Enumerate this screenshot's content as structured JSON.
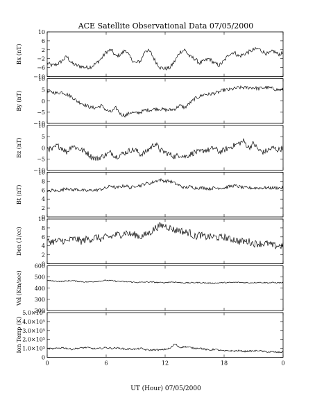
{
  "chart_data": {
    "type": "line",
    "title": "ACE Satellite Observational Data   07/05/2000",
    "xlabel": "UT (Hour)   07/05/2000",
    "xlim": [
      0,
      24
    ],
    "x_ticks": [
      "0",
      "6",
      "12",
      "18",
      "0"
    ],
    "x_tick_values": [
      0,
      6,
      12,
      18,
      24
    ],
    "sample_hours": [
      0,
      0.5,
      1,
      1.5,
      2,
      2.5,
      3,
      3.5,
      4,
      4.5,
      5,
      5.5,
      6,
      6.5,
      7,
      7.5,
      8,
      8.5,
      9,
      9.5,
      10,
      10.5,
      11,
      11.5,
      12,
      12.5,
      13,
      13.5,
      14,
      14.5,
      15,
      15.5,
      16,
      16.5,
      17,
      17.5,
      18,
      18.5,
      19,
      19.5,
      20,
      20.5,
      21,
      21.5,
      22,
      22.5,
      23,
      23.5,
      24
    ],
    "panels": [
      {
        "name": "bx",
        "ylabel": "Bx (nT)",
        "ylim": [
          -10,
          10
        ],
        "yticks": [
          -10,
          -6,
          -2,
          2,
          6,
          10
        ],
        "ytick_labels": [
          "−10",
          "−6",
          "−2",
          "2",
          "6",
          "10"
        ],
        "values": [
          -4,
          -5,
          -4.5,
          -3,
          -1,
          -4,
          -5,
          -5.5,
          -6,
          -5.5,
          -4,
          -2,
          1,
          2,
          -1,
          0,
          2,
          -2,
          -4,
          -3,
          2,
          1,
          -3,
          -6,
          -6.5,
          -6,
          -3,
          1,
          2,
          -1,
          -2,
          -4,
          -3,
          -2,
          -4,
          -5,
          -3,
          0,
          1,
          -1,
          0,
          1,
          2,
          2.5,
          1,
          0,
          1.5,
          0,
          0.5
        ]
      },
      {
        "name": "by",
        "ylabel": "By (nT)",
        "ylim": [
          -10,
          10
        ],
        "yticks": [
          -10,
          -5,
          0,
          5,
          10
        ],
        "ytick_labels": [
          "−10",
          "−5",
          "0",
          "5",
          "10"
        ],
        "values": [
          4,
          4,
          3.5,
          4,
          3,
          2,
          0,
          -1,
          -2,
          -3,
          -3,
          -2,
          -4,
          -5,
          -3,
          -6,
          -6.5,
          -5,
          -5.5,
          -5,
          -4,
          -4,
          -3.5,
          -3.5,
          -4,
          -4,
          -3.5,
          -2,
          -3,
          -1,
          1,
          2,
          3,
          3,
          3.5,
          4,
          5,
          5,
          5.5,
          6,
          6,
          6,
          6,
          5.5,
          6,
          6,
          5.5,
          5,
          5
        ]
      },
      {
        "name": "bz",
        "ylabel": "Bz (nT)",
        "ylim": [
          -10,
          10
        ],
        "yticks": [
          -10,
          -5,
          0,
          5,
          10
        ],
        "ytick_labels": [
          "−10",
          "−5",
          "0",
          "5",
          "10"
        ],
        "values": [
          0,
          -1,
          1,
          0,
          -2,
          1,
          0,
          -1,
          -2,
          -4,
          -5,
          -4,
          -3,
          -2,
          -4,
          -3,
          -2,
          -1,
          -1,
          -3,
          -2,
          0,
          2,
          -1,
          -2,
          -3,
          -4,
          -3,
          -4,
          -3,
          -2,
          -2,
          -1,
          -1,
          0,
          -2,
          -1,
          0,
          1,
          2,
          3,
          0,
          2,
          -1,
          -2,
          -1,
          0,
          -1,
          0
        ]
      },
      {
        "name": "bt",
        "ylabel": "Bt (nT)",
        "ylim": [
          0,
          10
        ],
        "yticks": [
          0,
          2,
          4,
          6,
          8,
          10
        ],
        "ytick_labels": [
          "0",
          "2",
          "4",
          "6",
          "8",
          "10"
        ],
        "values": [
          5.5,
          6,
          5.8,
          6,
          6.5,
          6,
          6.2,
          6,
          5.8,
          6,
          6,
          6.2,
          6.5,
          7,
          6.5,
          6.8,
          7,
          6.5,
          7,
          7,
          7.5,
          7.5,
          8,
          8.3,
          8,
          8,
          7.5,
          7,
          6.5,
          6.8,
          6.5,
          6.5,
          6.5,
          6.3,
          6.5,
          6.5,
          6.5,
          6.8,
          7,
          6.8,
          6.5,
          6.5,
          6.5,
          6.5,
          6.5,
          6.5,
          6.5,
          6.5,
          6.5
        ]
      },
      {
        "name": "den",
        "ylabel": "Den (1/cc)",
        "ylim": [
          0,
          10
        ],
        "yticks": [
          0,
          2,
          4,
          6,
          8,
          10
        ],
        "ytick_labels": [
          "0",
          "2",
          "4",
          "6",
          "8",
          "10"
        ],
        "values": [
          5,
          5,
          5,
          5.2,
          5,
          5.5,
          5.5,
          5,
          5.5,
          5.5,
          6,
          5.5,
          6,
          6,
          6.5,
          6.5,
          7,
          6.5,
          6.5,
          6,
          6.5,
          7,
          8,
          8.5,
          8.5,
          8,
          7.5,
          7.5,
          7,
          7,
          6,
          6.5,
          6,
          6,
          6,
          5.8,
          6,
          5.5,
          5.5,
          5,
          5,
          5,
          4.5,
          4.5,
          4.5,
          4.5,
          4,
          4,
          4
        ]
      },
      {
        "name": "vel",
        "ylabel": "Vel (Km/sec)",
        "ylim": [
          200,
          600
        ],
        "yticks": [
          200,
          300,
          400,
          500,
          600
        ],
        "ytick_labels": [
          "200",
          "300",
          "400",
          "500",
          "600"
        ],
        "values": [
          470,
          465,
          462,
          460,
          465,
          468,
          462,
          458,
          455,
          457,
          460,
          465,
          470,
          468,
          462,
          460,
          457,
          455,
          452,
          452,
          455,
          455,
          452,
          450,
          450,
          455,
          455,
          450,
          448,
          448,
          450,
          450,
          448,
          445,
          445,
          448,
          450,
          450,
          452,
          452,
          450,
          448,
          450,
          452,
          450,
          448,
          450,
          448,
          450
        ]
      },
      {
        "name": "temp",
        "ylabel": "Ion Temp (K)",
        "ylim": [
          0,
          500000
        ],
        "yticks": [
          0,
          100000,
          200000,
          300000,
          400000,
          500000
        ],
        "ytick_labels": [
          "0",
          "1.0×10⁵",
          "2.0×10⁵",
          "3.0×10⁵",
          "4.0×10⁵",
          "5.0×10⁵"
        ],
        "values": [
          100000,
          95000,
          100000,
          110000,
          100000,
          90000,
          100000,
          105000,
          110000,
          100000,
          95000,
          100000,
          110000,
          100000,
          105000,
          100000,
          90000,
          95000,
          90000,
          100000,
          85000,
          80000,
          85000,
          80000,
          90000,
          100000,
          150000,
          110000,
          120000,
          110000,
          100000,
          105000,
          90000,
          80000,
          90000,
          80000,
          70000,
          75000,
          70000,
          75000,
          65000,
          70000,
          70000,
          75000,
          65000,
          60000,
          60000,
          55000,
          60000
        ]
      }
    ]
  }
}
